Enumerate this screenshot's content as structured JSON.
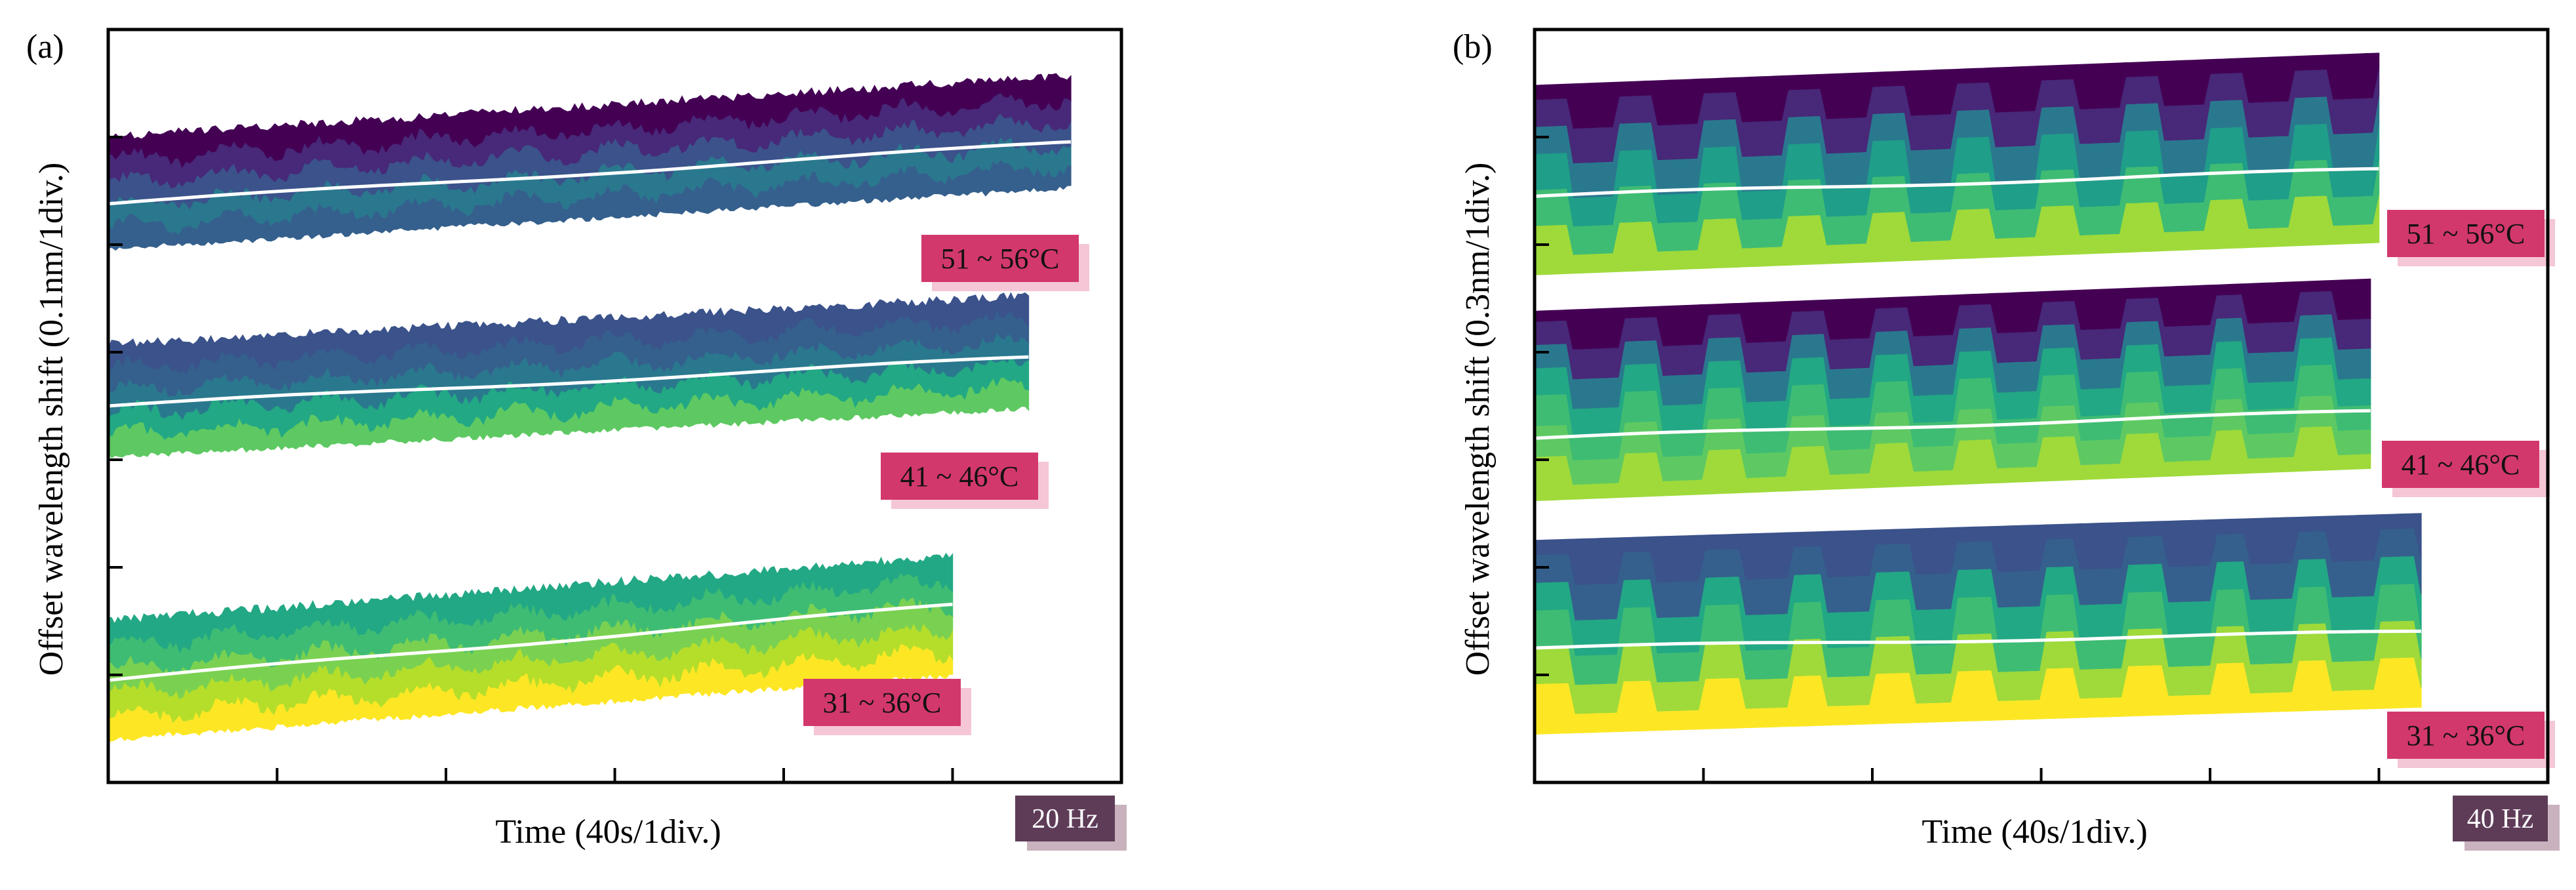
{
  "chart_data": [
    {
      "type": "area",
      "panel_label": "(a)",
      "xlabel": "Time (40s/1div.)",
      "ylabel": "Offset wavelength shift (0.1nm/1div.)",
      "x_divisions": 6,
      "y_divisions": 7,
      "frequency_badge": "20 Hz",
      "band_style": "noisy",
      "colors": {
        "badge": "#5e3c58",
        "badge_shadow": "#c9b2bd",
        "temp_box": "#d2386c",
        "temp_shadow": "#f5c6d6"
      },
      "series": [
        {
          "name": "51 ~ 56°C",
          "x_end_div": 5.7,
          "start_mid_div": 5.48,
          "end_mid_div": 6.05,
          "half_height_div": 0.52,
          "trend_start_div": 5.38,
          "trend_end_div": 5.95,
          "layers": [
            "#35608d",
            "#2a788e",
            "#3b528b",
            "#482878",
            "#440154"
          ]
        },
        {
          "name": "41 ~ 46°C",
          "x_end_div": 5.45,
          "start_mid_div": 3.55,
          "end_mid_div": 4.0,
          "half_height_div": 0.52,
          "trend_start_div": 3.5,
          "trend_end_div": 3.95,
          "layers": [
            "#5ec962",
            "#22a884",
            "#2a788e",
            "#35608d",
            "#3b528b"
          ]
        },
        {
          "name": "31 ~ 36°C",
          "x_end_div": 5.0,
          "start_mid_div": 0.95,
          "end_mid_div": 1.55,
          "half_height_div": 0.55,
          "trend_start_div": 0.95,
          "trend_end_div": 1.65,
          "layers": [
            "#fde725",
            "#b5de2b",
            "#7ad151",
            "#3fbc73",
            "#22a884"
          ]
        }
      ]
    },
    {
      "type": "area",
      "panel_label": "(b)",
      "xlabel": "Time (40s/1div.)",
      "ylabel": "Offset wavelength shift (0.3nm/1div.)",
      "x_divisions": 6,
      "y_divisions": 7,
      "frequency_badge": "40 Hz",
      "band_style": "square",
      "colors": {
        "badge": "#5e3c58",
        "badge_shadow": "#c9b2bd",
        "temp_box": "#d2386c",
        "temp_shadow": "#f5c6d6"
      },
      "series": [
        {
          "name": "51 ~ 56°C",
          "x_end_div": 5.0,
          "start_mid_div": 5.6,
          "end_mid_div": 5.9,
          "half_height_div": 0.88,
          "trend_start_div": 5.45,
          "trend_end_div": 5.7,
          "layers": [
            "#9fda3a",
            "#3fbc73",
            "#1f9e89",
            "#2a788e",
            "#482878",
            "#440154"
          ]
        },
        {
          "name": "41 ~ 46°C",
          "x_end_div": 4.95,
          "start_mid_div": 3.5,
          "end_mid_div": 3.8,
          "half_height_div": 0.88,
          "trend_start_div": 3.2,
          "trend_end_div": 3.45,
          "layers": [
            "#9fda3a",
            "#5ec962",
            "#3fbc73",
            "#22a884",
            "#2a788e",
            "#482878",
            "#440154"
          ]
        },
        {
          "name": "31 ~ 36°C",
          "x_end_div": 5.25,
          "start_mid_div": 1.35,
          "end_mid_div": 1.6,
          "half_height_div": 0.9,
          "trend_start_div": 1.25,
          "trend_end_div": 1.4,
          "layers": [
            "#fde725",
            "#9fda3a",
            "#3fbc73",
            "#22a884",
            "#35608d",
            "#3b528b"
          ]
        }
      ]
    }
  ]
}
